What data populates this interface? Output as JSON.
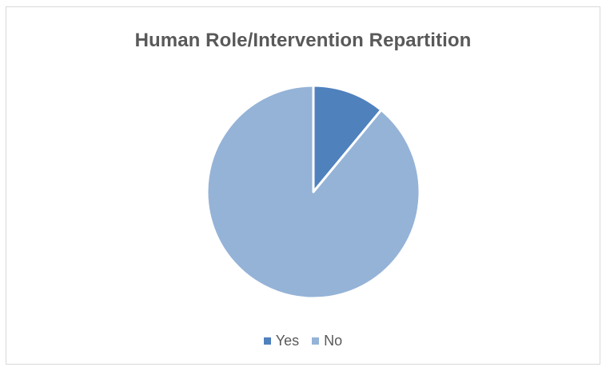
{
  "chart_data": {
    "type": "pie",
    "title": "Human Role/Intervention Repartition",
    "categories": [
      "Yes",
      "No"
    ],
    "values": [
      11,
      89
    ],
    "colors": [
      "#4f81bd",
      "#95b3d7"
    ],
    "legend_position": "bottom"
  }
}
